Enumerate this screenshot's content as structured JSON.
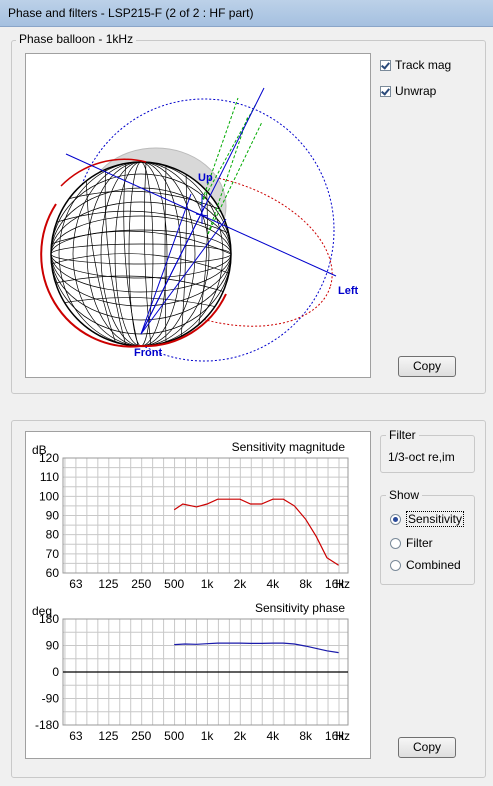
{
  "window": {
    "title": "Phase and filters - LSP215-F (2 of 2 : HF part)"
  },
  "balloon": {
    "group_label": "Phase balloon - 1kHz",
    "axes": {
      "up": "Up",
      "left": "Left",
      "front": "Front"
    },
    "track_mag_label": "Track mag",
    "unwrap_label": "Unwrap",
    "copy_label": "Copy"
  },
  "filter": {
    "label": "Filter",
    "value": "1/3-oct re,im"
  },
  "show": {
    "label": "Show",
    "options": [
      "Sensitivity",
      "Filter",
      "Combined"
    ],
    "selected": "Sensitivity"
  },
  "copy2_label": "Copy",
  "colors": {
    "magnitude": "#cc0000",
    "phase": "#1a1aaa",
    "grid": "#c8c8c8"
  },
  "chart_data": [
    {
      "type": "line",
      "title": "Sensitivity magnitude",
      "ylabel": "dB",
      "xunit": "Hz",
      "x_scale": "log",
      "x_ticks": [
        63,
        125,
        250,
        500,
        1000,
        2000,
        4000,
        8000,
        16000
      ],
      "x_tick_labels": [
        "63",
        "125",
        "250",
        "500",
        "1k",
        "2k",
        "4k",
        "8k",
        "16k"
      ],
      "ylim": [
        60,
        120
      ],
      "y_ticks": [
        60,
        70,
        80,
        90,
        100,
        110,
        120
      ],
      "grid": true,
      "series": [
        {
          "x": [
            500,
            600,
            800,
            1000,
            1250,
            1600,
            2000,
            2500,
            3150,
            4000,
            5000,
            6300,
            8000,
            10000,
            12500,
            16000
          ],
          "values": [
            93,
            96,
            94.5,
            96,
            98.5,
            98.5,
            98.5,
            96,
            96,
            98.5,
            98.5,
            95,
            88,
            79,
            68,
            64
          ]
        }
      ]
    },
    {
      "type": "line",
      "title": "Sensitivity phase",
      "ylabel": "deg",
      "xunit": "Hz",
      "x_scale": "log",
      "x_ticks": [
        63,
        125,
        250,
        500,
        1000,
        2000,
        4000,
        8000,
        16000
      ],
      "x_tick_labels": [
        "63",
        "125",
        "250",
        "500",
        "1k",
        "2k",
        "4k",
        "8k",
        "16k"
      ],
      "ylim": [
        -180,
        180
      ],
      "y_ticks": [
        -180,
        -90,
        0,
        90,
        180
      ],
      "grid": true,
      "series": [
        {
          "x": [
            500,
            630,
            800,
            1000,
            1250,
            1600,
            2000,
            2500,
            3150,
            4000,
            5000,
            6300,
            8000,
            10000,
            12500,
            16000
          ],
          "values": [
            93,
            95,
            94,
            96,
            98,
            98,
            98,
            97,
            97,
            98,
            98,
            95,
            88,
            80,
            72,
            66
          ]
        }
      ]
    }
  ]
}
